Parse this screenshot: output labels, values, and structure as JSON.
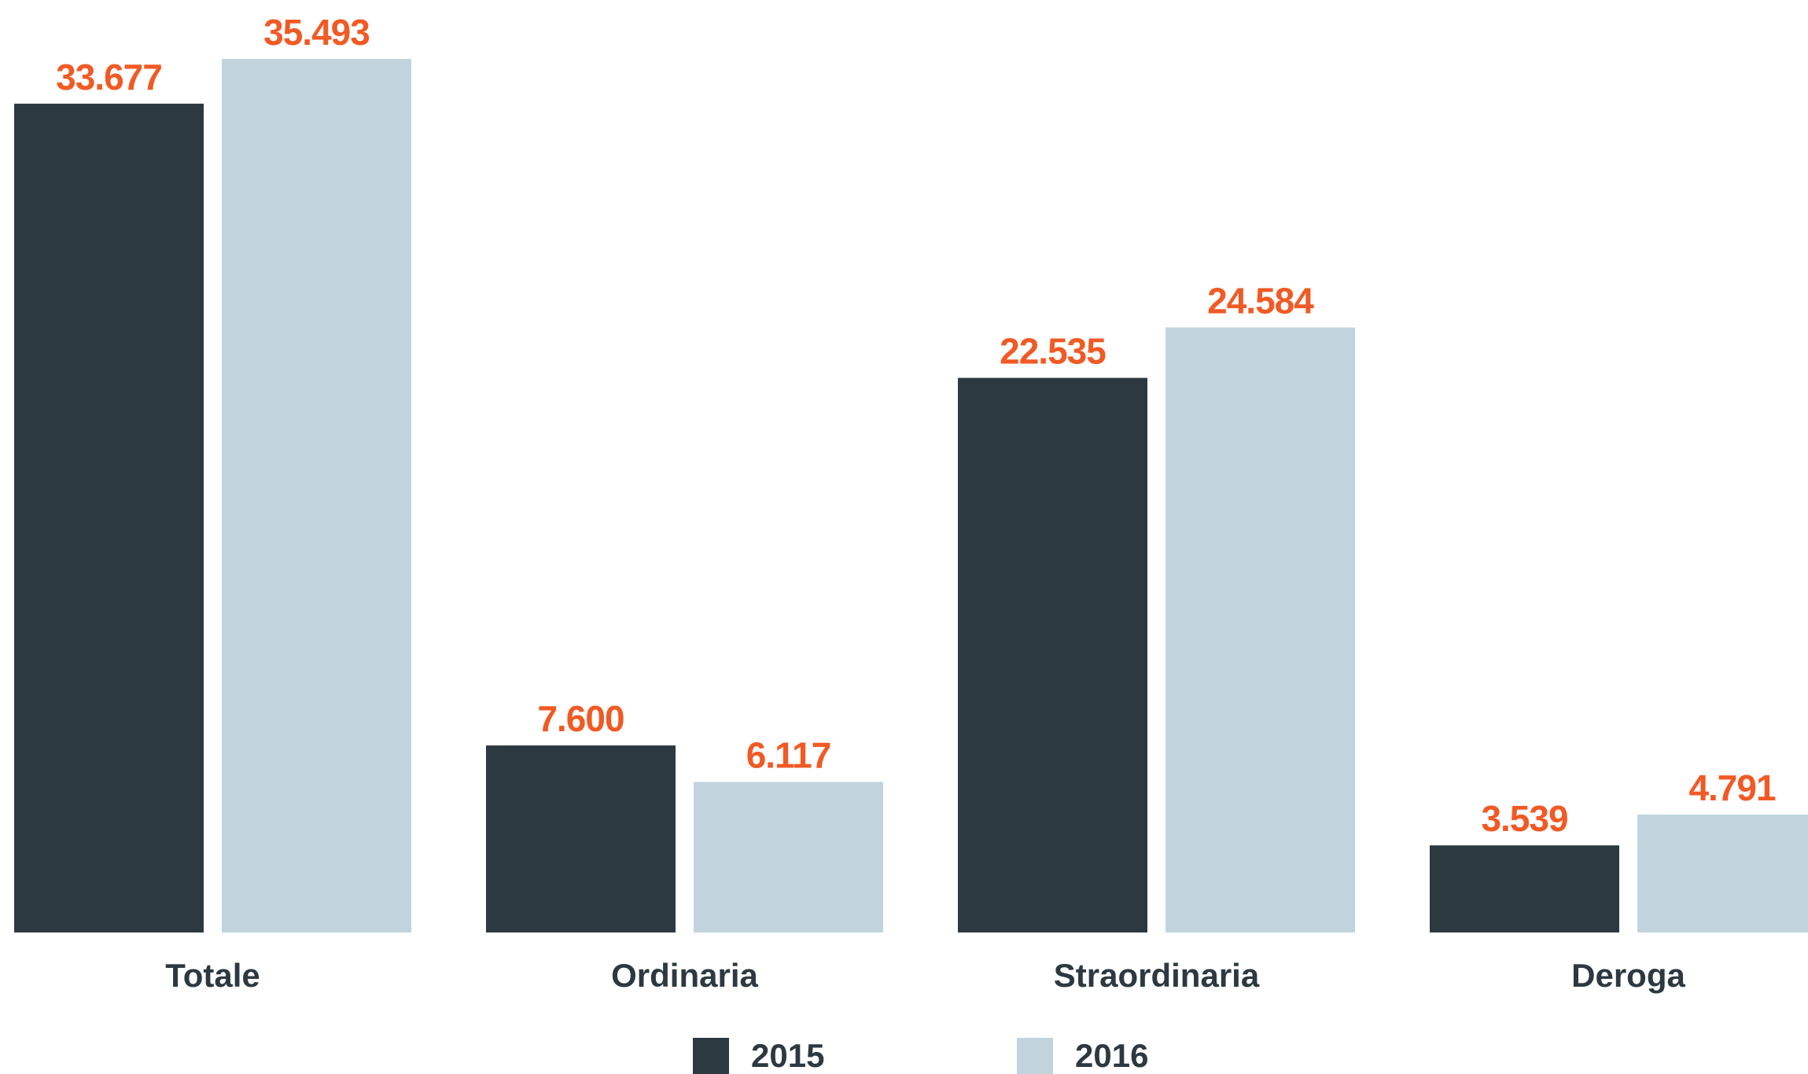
{
  "chart_data": {
    "type": "bar",
    "categories": [
      "Totale",
      "Ordinaria",
      "Straordinaria",
      "Deroga"
    ],
    "series": [
      {
        "name": "2015",
        "values": [
          33677,
          7600,
          22535,
          3539
        ],
        "labels": [
          "33.677",
          "7.600",
          "22.535",
          "3.539"
        ],
        "color": "#2d3940"
      },
      {
        "name": "2016",
        "values": [
          35493,
          6117,
          24584,
          4791
        ],
        "labels": [
          "35.493",
          "6.117",
          "24.584",
          "4.791"
        ],
        "color": "#c1d4dd"
      }
    ],
    "ylim": [
      0,
      35493
    ],
    "grid": false,
    "legend_position": "bottom-center",
    "title": "",
    "xlabel": "",
    "ylabel": ""
  },
  "colors": {
    "value_label": "#f15a24",
    "category_label": "#2d3940"
  }
}
